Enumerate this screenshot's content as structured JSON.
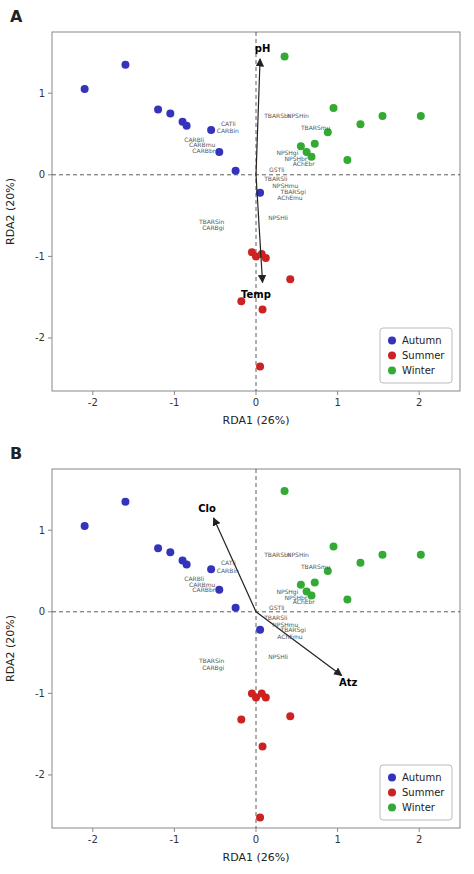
{
  "chart_data": [
    {
      "type": "scatter",
      "title": "A",
      "x_label": "RDA1 (26%)",
      "y_label": "RDA2 (20%)",
      "xlim": [
        -2.5,
        2.5
      ],
      "ylim": [
        -2.65,
        1.75
      ],
      "xticks": [
        -2,
        -1,
        0,
        1,
        2
      ],
      "yticks": [
        -2,
        -1,
        0,
        1
      ],
      "grid": false,
      "legend": "lower right",
      "series": [
        {
          "name": "Autumn",
          "color": "#3333bb",
          "x": [
            -2.1,
            -1.6,
            -1.2,
            -1.05,
            -0.9,
            -0.85,
            -0.55,
            -0.45,
            -0.25,
            0.05
          ],
          "values": [
            1.05,
            1.35,
            0.8,
            0.75,
            0.65,
            0.6,
            0.55,
            0.28,
            0.05,
            -0.22
          ]
        },
        {
          "name": "Summer",
          "color": "#cc2222",
          "x": [
            -0.05,
            0.0,
            0.07,
            0.12,
            -0.18,
            0.08,
            0.42,
            0.05
          ],
          "values": [
            -0.95,
            -1.0,
            -0.97,
            -1.02,
            -1.55,
            -1.65,
            -1.28,
            -2.35
          ]
        },
        {
          "name": "Winter",
          "color": "#33aa33",
          "x": [
            0.35,
            0.55,
            0.62,
            0.68,
            0.72,
            0.88,
            0.95,
            1.12,
            1.28,
            1.55,
            2.02
          ],
          "values": [
            1.45,
            0.35,
            0.28,
            0.22,
            0.38,
            0.52,
            0.82,
            0.18,
            0.62,
            0.72,
            0.72
          ]
        }
      ],
      "reference_lines": [
        {
          "axis": "x",
          "value": 0
        },
        {
          "axis": "y",
          "value": 0
        }
      ],
      "arrows": [
        {
          "label": "pH",
          "start": [
            0.0,
            0.0
          ],
          "end": [
            0.05,
            1.42
          ],
          "label_x": 0.08,
          "label_y": 1.55
        },
        {
          "label": "Temp",
          "start": [
            0.0,
            0.0
          ],
          "end": [
            0.08,
            -1.32
          ],
          "label_x": 0.0,
          "label_y": -1.47
        }
      ],
      "annotations": [
        {
          "text": "CATli",
          "x": -0.43,
          "y": 0.63
        },
        {
          "text": "CARBin",
          "x": -0.48,
          "y": 0.54
        },
        {
          "text": "CARBli",
          "x": -0.88,
          "y": 0.43
        },
        {
          "text": "CARBmu",
          "x": -0.82,
          "y": 0.37
        },
        {
          "text": "CARBbr",
          "x": -0.78,
          "y": 0.3
        },
        {
          "text": "TBARSin",
          "x": -0.7,
          "y": -0.57
        },
        {
          "text": "CARBgi",
          "x": -0.66,
          "y": -0.65
        },
        {
          "text": "TBARSbr",
          "x": 0.1,
          "y": 0.73
        },
        {
          "text": "NPSHin",
          "x": 0.38,
          "y": 0.73
        },
        {
          "text": "TBARSmu",
          "x": 0.55,
          "y": 0.58
        },
        {
          "text": "NPSHgi",
          "x": 0.25,
          "y": 0.27
        },
        {
          "text": "NPSHbr",
          "x": 0.35,
          "y": 0.2
        },
        {
          "text": "AChEbr",
          "x": 0.45,
          "y": 0.14
        },
        {
          "text": "GSTli",
          "x": 0.16,
          "y": 0.07
        },
        {
          "text": "TBARSli",
          "x": 0.1,
          "y": -0.05
        },
        {
          "text": "NPSHmu",
          "x": 0.2,
          "y": -0.13
        },
        {
          "text": "TBARSgi",
          "x": 0.3,
          "y": -0.2
        },
        {
          "text": "AChEmu",
          "x": 0.26,
          "y": -0.28
        },
        {
          "text": "NPSHli",
          "x": 0.15,
          "y": -0.52
        }
      ]
    },
    {
      "type": "scatter",
      "title": "B",
      "x_label": "RDA1 (26%)",
      "y_label": "RDA2 (20%)",
      "xlim": [
        -2.5,
        2.5
      ],
      "ylim": [
        -2.65,
        1.75
      ],
      "xticks": [
        -2,
        -1,
        0,
        1,
        2
      ],
      "yticks": [
        -2,
        -1,
        0,
        1
      ],
      "grid": false,
      "legend": "lower right",
      "series": [
        {
          "name": "Autumn",
          "color": "#3333bb",
          "x": [
            -2.1,
            -1.6,
            -1.2,
            -1.05,
            -0.9,
            -0.85,
            -0.55,
            -0.45,
            -0.25,
            0.05
          ],
          "values": [
            1.05,
            1.35,
            0.78,
            0.73,
            0.63,
            0.58,
            0.52,
            0.27,
            0.05,
            -0.22
          ]
        },
        {
          "name": "Summer",
          "color": "#cc2222",
          "x": [
            -0.05,
            0.0,
            0.07,
            0.12,
            -0.18,
            0.08,
            0.42,
            0.05
          ],
          "values": [
            -1.0,
            -1.05,
            -1.0,
            -1.05,
            -1.32,
            -1.65,
            -1.28,
            -2.52
          ]
        },
        {
          "name": "Winter",
          "color": "#33aa33",
          "x": [
            0.35,
            0.55,
            0.62,
            0.68,
            0.72,
            0.88,
            0.95,
            1.12,
            1.28,
            1.55,
            2.02
          ],
          "values": [
            1.48,
            0.33,
            0.25,
            0.2,
            0.36,
            0.5,
            0.8,
            0.15,
            0.6,
            0.7,
            0.7
          ]
        }
      ],
      "reference_lines": [
        {
          "axis": "x",
          "value": 0
        },
        {
          "axis": "y",
          "value": 0
        }
      ],
      "arrows": [
        {
          "label": "Clo",
          "start": [
            0.0,
            0.0
          ],
          "end": [
            -0.52,
            1.15
          ],
          "label_x": -0.6,
          "label_y": 1.27
        },
        {
          "label": "Atz",
          "start": [
            0.0,
            0.0
          ],
          "end": [
            1.05,
            -0.78
          ],
          "label_x": 1.13,
          "label_y": -0.87
        }
      ],
      "annotations": [
        {
          "text": "CATli",
          "x": -0.43,
          "y": 0.6
        },
        {
          "text": "CARBin",
          "x": -0.48,
          "y": 0.51
        },
        {
          "text": "CARBli",
          "x": -0.88,
          "y": 0.41
        },
        {
          "text": "CARBmu",
          "x": -0.82,
          "y": 0.34
        },
        {
          "text": "CARBbr",
          "x": -0.78,
          "y": 0.27
        },
        {
          "text": "TBARSin",
          "x": -0.7,
          "y": -0.6
        },
        {
          "text": "CARBgi",
          "x": -0.66,
          "y": -0.68
        },
        {
          "text": "TBARSbr",
          "x": 0.1,
          "y": 0.7
        },
        {
          "text": "NPSHin",
          "x": 0.38,
          "y": 0.7
        },
        {
          "text": "TBARSmu",
          "x": 0.55,
          "y": 0.55
        },
        {
          "text": "NPSHgi",
          "x": 0.25,
          "y": 0.25
        },
        {
          "text": "NPSHbr",
          "x": 0.35,
          "y": 0.18
        },
        {
          "text": "AChEbr",
          "x": 0.45,
          "y": 0.12
        },
        {
          "text": "GSTli",
          "x": 0.16,
          "y": 0.05
        },
        {
          "text": "TBARSli",
          "x": 0.1,
          "y": -0.07
        },
        {
          "text": "NPSHmu",
          "x": 0.2,
          "y": -0.15
        },
        {
          "text": "TBARSgi",
          "x": 0.3,
          "y": -0.22
        },
        {
          "text": "AChEmu",
          "x": 0.26,
          "y": -0.3
        },
        {
          "text": "NPSHli",
          "x": 0.15,
          "y": -0.55
        }
      ]
    }
  ]
}
